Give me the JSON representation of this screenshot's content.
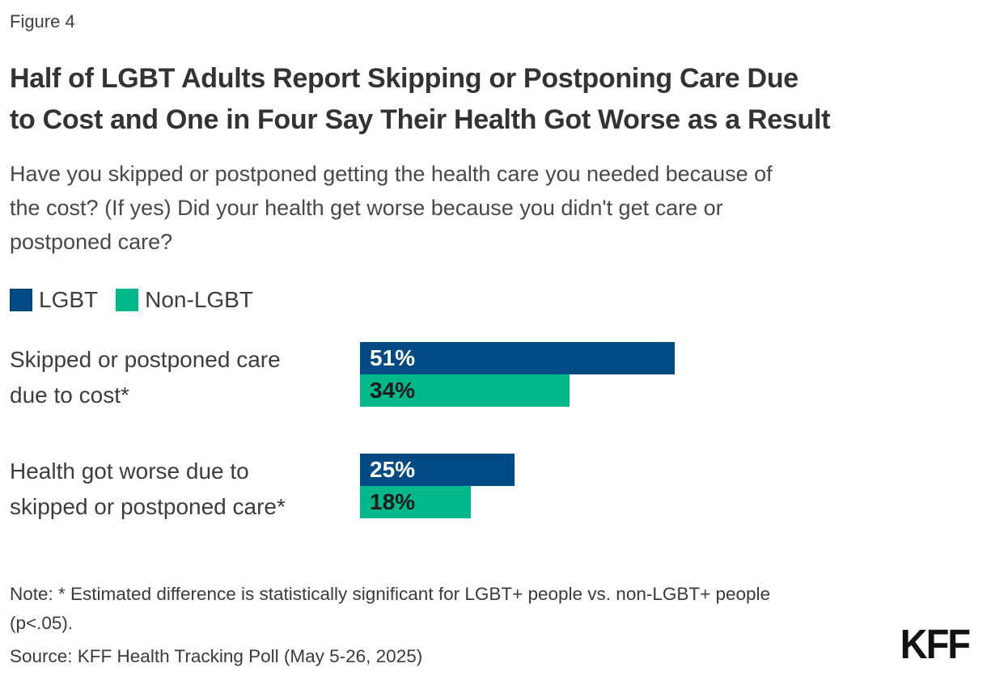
{
  "figure_label": "Figure 4",
  "header": {
    "title_lines": [
      "Half of LGBT Adults Report Skipping or Postponing Care Due",
      "to Cost and One in Four Say Their Health Got Worse as a Result"
    ],
    "question_lines": [
      "Have you skipped or postponed getting the health care you needed because of",
      "the cost? (If yes) Did your health get worse because you didn't get care or",
      "postponed care?"
    ]
  },
  "legend": {
    "items": [
      {
        "label": "LGBT",
        "color": "#004a86"
      },
      {
        "label": "Non-LGBT",
        "color": "#00b88a"
      }
    ]
  },
  "chart_data": {
    "type": "bar",
    "orientation": "horizontal",
    "unit": "%",
    "title": "Half of LGBT Adults Report Skipping or Postponing Care Due to Cost and One in Four Say Their Health Got Worse as a Result",
    "categories": [
      "Skipped or postponed care due to cost*",
      "Health got worse due to skipped or postponed care*"
    ],
    "category_label_lines": [
      [
        "Skipped or postponed care",
        "due to cost*"
      ],
      [
        "Health got worse due to",
        "skipped or postponed care*"
      ]
    ],
    "series": [
      {
        "name": "LGBT",
        "color": "#004a86",
        "label_color": "#ffffff",
        "values": [
          51,
          25
        ]
      },
      {
        "name": "Non-LGBT",
        "color": "#00b88a",
        "label_color": "#1a1a1a",
        "values": [
          34,
          18
        ]
      }
    ],
    "xlim": [
      0,
      100
    ],
    "grid": false,
    "legend_position": "top-left"
  },
  "footer": {
    "note_lines": [
      "Note: * Estimated difference is statistically significant for LGBT+ people vs. non-LGBT+ people",
      "(p<.05)."
    ],
    "source": "Source: KFF Health Tracking Poll (May 5-26, 2025)",
    "logo": "KFF"
  }
}
